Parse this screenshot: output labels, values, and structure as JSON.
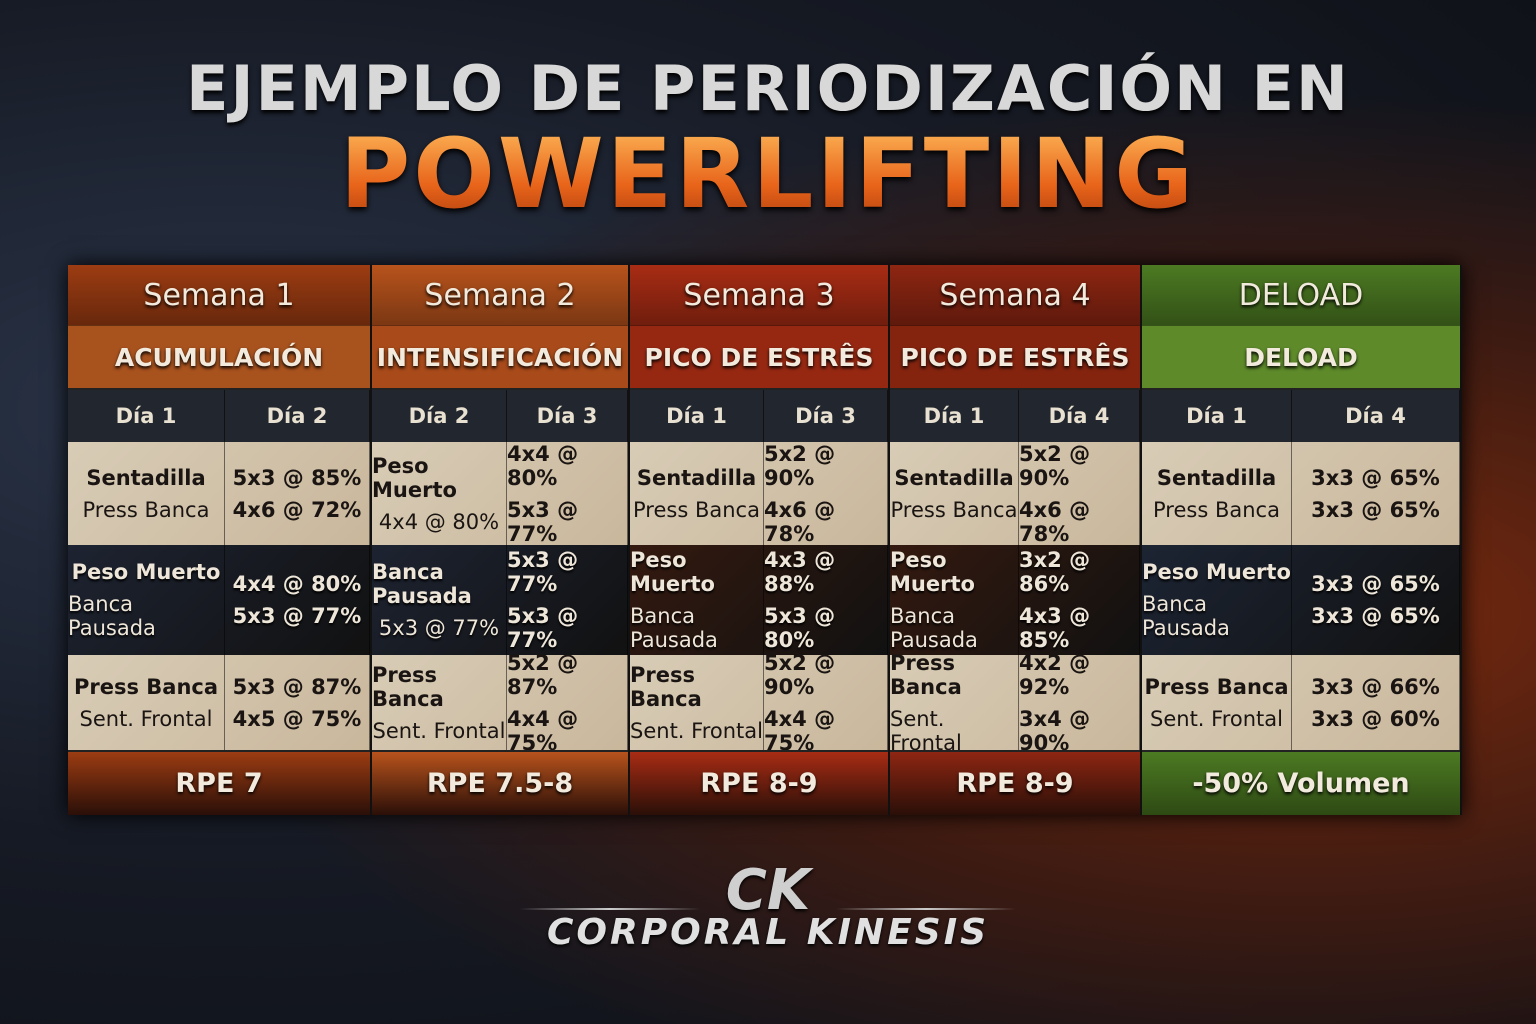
{
  "title": {
    "line1": "EJEMPLO DE PERIODIZACIÓN EN",
    "line2": "POWERLIFTING"
  },
  "weeks": [
    {
      "title": "Semana 1",
      "phase": "ACUMULACIÓN",
      "days": [
        "Día 1",
        "Día 2"
      ],
      "color": "#9c3c12",
      "phase_color": "#a8521e",
      "dark_row": "#1d2331",
      "rows": [
        {
          "left": [
            "Sentadilla",
            "Press Banca"
          ],
          "right": [
            "5x3 @ 85%",
            "4x6 @ 72%"
          ]
        },
        {
          "left": [
            "Peso Muerto",
            "Banca Pausada"
          ],
          "right": [
            "4x4 @ 80%",
            "5x3 @ 77%"
          ]
        },
        {
          "left": [
            "Press Banca",
            "Sent. Frontal"
          ],
          "right": [
            "5x3 @ 87%",
            "4x5 @ 75%"
          ]
        }
      ],
      "footer": "RPE 7"
    },
    {
      "title": "Semana 2",
      "phase": "INTENSIFICACIÓN",
      "days": [
        "Día 2",
        "Día 3"
      ],
      "color": "#b8531c",
      "phase_color": "#a84a1a",
      "dark_row": "#1d2331",
      "rows": [
        {
          "left": [
            "Peso Muerto",
            "4x4 @ 80%"
          ],
          "right": [
            "4x4 @ 80%",
            "5x3 @ 77%"
          ]
        },
        {
          "left": [
            "Banca Pausada",
            "5x3 @ 77%"
          ],
          "right": [
            "5x3 @ 77%",
            "5x3 @ 77%"
          ]
        },
        {
          "left": [
            "Press Banca",
            "Sent. Frontal"
          ],
          "right": [
            "5x2 @ 87%",
            "4x4 @ 75%"
          ]
        }
      ],
      "footer": "RPE 7.5-8"
    },
    {
      "title": "Semana 3",
      "phase": "PICO DE ESTRÊS",
      "days": [
        "Día 1",
        "Día 3"
      ],
      "color": "#a82c14",
      "phase_color": "#962812",
      "dark_row": "#34190f",
      "rows": [
        {
          "left": [
            "Sentadilla",
            "Press Banca"
          ],
          "right": [
            "5x2 @ 90%",
            "4x6 @ 78%"
          ]
        },
        {
          "left": [
            "Peso Muerto",
            "Banca Pausada"
          ],
          "right": [
            "4x3 @ 88%",
            "5x3 @ 80%"
          ]
        },
        {
          "left": [
            "Press Banca",
            "Sent. Frontal"
          ],
          "right": [
            "5x2 @ 90%",
            "4x4 @ 75%"
          ]
        }
      ],
      "footer": "RPE 8-9"
    },
    {
      "title": "Semana 4",
      "phase": "PICO DE ESTRÊS",
      "days": [
        "Día 1",
        "Día 4"
      ],
      "color": "#8e2612",
      "phase_color": "#84240f",
      "dark_row": "#34190f",
      "rows": [
        {
          "left": [
            "Sentadilla",
            "Press Banca"
          ],
          "right": [
            "5x2 @ 90%",
            "4x6 @ 78%"
          ]
        },
        {
          "left": [
            "Peso Muerto",
            "Banca Pausada"
          ],
          "right": [
            "3x2 @ 86%",
            "4x3 @ 85%"
          ]
        },
        {
          "left": [
            "Press Banca",
            "Sent. Frontal"
          ],
          "right": [
            "4x2 @ 92%",
            "3x4 @ 90%"
          ]
        }
      ],
      "footer": "RPE 8-9"
    },
    {
      "title": "DELOAD",
      "phase": "DELOAD",
      "days": [
        "Día 1",
        "Día 4"
      ],
      "color": "#4c7a22",
      "phase_color": "#5e8a2a",
      "dark_row": "#1c2433",
      "rows": [
        {
          "left": [
            "Sentadilla",
            "Press Banca"
          ],
          "right": [
            "3x3 @ 65%",
            "3x3 @ 65%"
          ]
        },
        {
          "left": [
            "Peso Muerto",
            "Banca Pausada"
          ],
          "right": [
            "3x3 @ 65%",
            "3x3 @ 65%"
          ]
        },
        {
          "left": [
            "Press Banca",
            "Sent. Frontal"
          ],
          "right": [
            "3x3 @ 66%",
            "3x3 @ 60%"
          ]
        }
      ],
      "footer": "-50% Volumen"
    }
  ],
  "logo": {
    "mark": "CK",
    "name": "CORPORAL KINESIS"
  }
}
